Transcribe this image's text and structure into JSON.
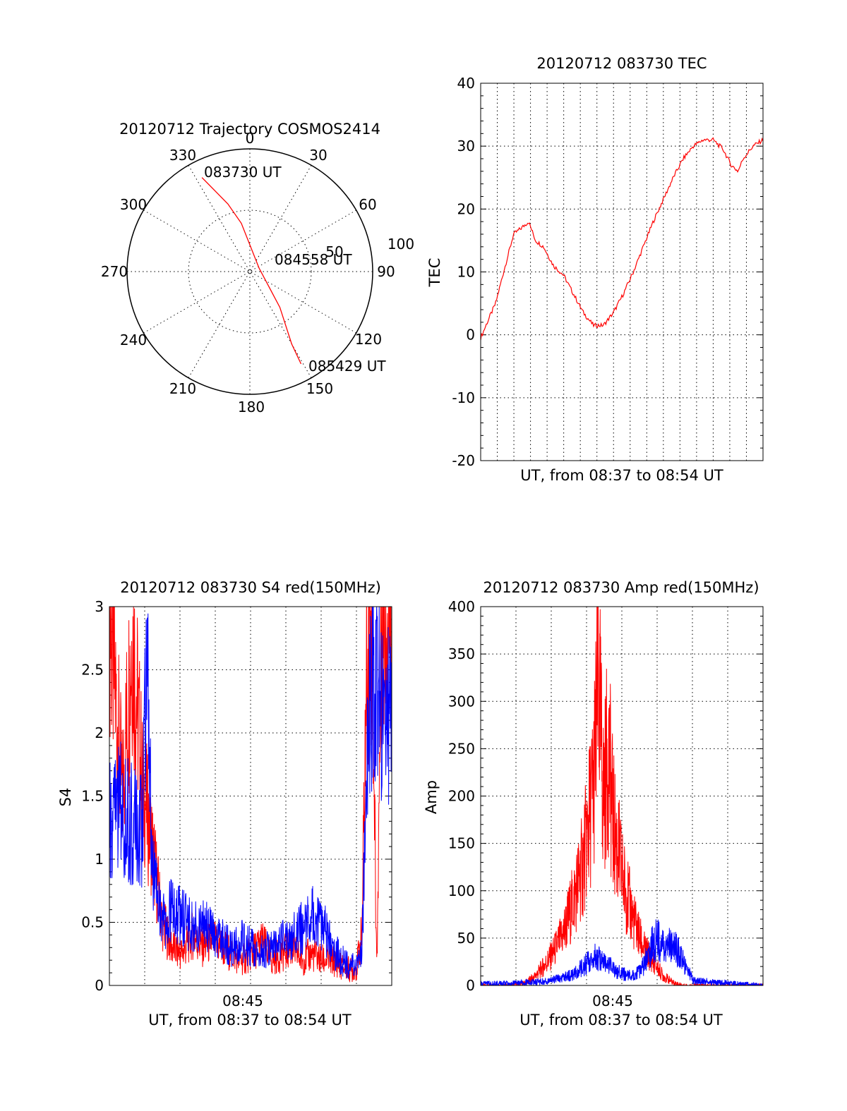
{
  "colors": {
    "red": "#ff0000",
    "blue": "#0000ff",
    "axis": "#000000"
  },
  "chart_data": [
    {
      "type": "polar",
      "title": "20120712 Trajectory COSMOS2414",
      "angle_labels": [
        "0",
        "30",
        "60",
        "90",
        "120",
        "150",
        "180",
        "210",
        "240",
        "270",
        "300",
        "330"
      ],
      "ring_labels": [
        "50",
        "100"
      ],
      "r_max": 100,
      "annotations": [
        "083730 UT",
        "084558 UT",
        "085429 UT"
      ],
      "series": [
        {
          "color": "red",
          "points": [
            [
              333,
              86
            ],
            [
              342,
              58
            ],
            [
              350,
              40
            ],
            [
              70,
              8
            ],
            [
              140,
              38
            ],
            [
              150,
              68
            ],
            [
              151,
              86
            ]
          ]
        }
      ]
    },
    {
      "type": "line",
      "title": "20120712 083730 TEC",
      "xlabel": "UT, from 08:37 to 08:54 UT",
      "ylabel": "TEC",
      "xlim": [
        8.617,
        8.9
      ],
      "ylim": [
        -20,
        40
      ],
      "yticks": [
        "-20",
        "-10",
        "0",
        "10",
        "20",
        "30",
        "40"
      ],
      "grid": true,
      "series": [
        {
          "color": "red",
          "x": [
            8.617,
            8.625,
            8.632,
            8.64,
            8.65,
            8.658,
            8.665,
            8.672,
            8.68,
            8.69,
            8.7,
            8.71,
            8.72,
            8.73,
            8.74,
            8.75,
            8.76,
            8.77,
            8.78,
            8.79,
            8.8,
            8.81,
            8.82,
            8.83,
            8.84,
            8.85,
            8.86,
            8.868,
            8.875,
            8.88,
            8.89,
            8.9
          ],
          "y": [
            -0.5,
            2.5,
            5,
            10,
            16,
            17,
            18,
            15,
            14,
            11,
            9.5,
            6.5,
            3.5,
            1.5,
            1.5,
            3.5,
            6.5,
            10,
            14,
            18,
            21.5,
            25,
            28,
            30,
            31,
            31,
            29.5,
            27,
            26,
            28,
            30,
            31
          ]
        }
      ]
    },
    {
      "type": "line",
      "title": "20120712 083730 S4 red(150MHz)",
      "xlabel": "UT, from 08:37 to 08:54 UT",
      "xtick_label": "08:45",
      "ylabel": "S4",
      "xlim": [
        8.617,
        8.9
      ],
      "ylim": [
        0,
        3
      ],
      "yticks": [
        "0",
        "0.5",
        "1",
        "1.5",
        "2",
        "2.5",
        "3"
      ],
      "grid": true,
      "series": [
        {
          "color": "red",
          "x": [
            8.617,
            8.63,
            8.64,
            8.65,
            8.66,
            8.67,
            8.68,
            8.69,
            8.7,
            8.71,
            8.72,
            8.73,
            8.74,
            8.75,
            8.76,
            8.77,
            8.78,
            8.79,
            8.8,
            8.81,
            8.82,
            8.83,
            8.84,
            8.85,
            8.86,
            8.865,
            8.87,
            8.875,
            8.88,
            8.885,
            8.89,
            8.9
          ],
          "y": [
            3,
            1.5,
            2.8,
            1.6,
            1.1,
            0.5,
            0.3,
            0.25,
            0.4,
            0.3,
            0.35,
            0.3,
            0.25,
            0.2,
            0.25,
            0.35,
            0.2,
            0.25,
            0.3,
            0.2,
            0.25,
            0.2,
            0.2,
            0.15,
            0.12,
            0.15,
            0.4,
            2.5,
            3,
            0.1,
            3,
            3
          ]
        },
        {
          "color": "blue",
          "x": [
            8.617,
            8.63,
            8.64,
            8.65,
            8.655,
            8.66,
            8.67,
            8.68,
            8.69,
            8.7,
            8.71,
            8.72,
            8.73,
            8.74,
            8.75,
            8.76,
            8.77,
            8.78,
            8.79,
            8.8,
            8.81,
            8.82,
            8.83,
            8.84,
            8.85,
            8.86,
            8.865,
            8.87,
            8.875,
            8.88,
            8.89,
            8.9
          ],
          "y": [
            1.3,
            1.4,
            1.25,
            1.2,
            3,
            0.9,
            0.5,
            0.6,
            0.55,
            0.45,
            0.5,
            0.4,
            0.35,
            0.3,
            0.35,
            0.3,
            0.25,
            0.3,
            0.35,
            0.4,
            0.45,
            0.55,
            0.5,
            0.3,
            0.2,
            0.15,
            0.18,
            0.25,
            1.8,
            2.4,
            2.2,
            2
          ]
        }
      ]
    },
    {
      "type": "line",
      "title": "20120712 083730 Amp red(150MHz)",
      "xlabel": "UT, from 08:37 to 08:54 UT",
      "xtick_label": "08:45",
      "ylabel": "Amp",
      "xlim": [
        8.617,
        8.9
      ],
      "ylim": [
        0,
        400
      ],
      "yticks": [
        "0",
        "50",
        "100",
        "150",
        "200",
        "250",
        "300",
        "350",
        "400"
      ],
      "grid": true,
      "series": [
        {
          "color": "red",
          "x": [
            8.617,
            8.64,
            8.66,
            8.67,
            8.68,
            8.69,
            8.7,
            8.71,
            8.72,
            8.725,
            8.73,
            8.735,
            8.74,
            8.745,
            8.75,
            8.76,
            8.77,
            8.78,
            8.79,
            8.8,
            8.81,
            8.82,
            8.83,
            8.9
          ],
          "y": [
            0,
            0,
            2,
            8,
            20,
            35,
            55,
            90,
            130,
            170,
            210,
            320,
            200,
            250,
            170,
            110,
            70,
            40,
            25,
            10,
            3,
            0,
            0,
            0
          ]
        },
        {
          "color": "blue",
          "x": [
            8.617,
            8.64,
            8.66,
            8.68,
            8.7,
            8.71,
            8.72,
            8.73,
            8.74,
            8.75,
            8.76,
            8.77,
            8.78,
            8.79,
            8.795,
            8.8,
            8.81,
            8.82,
            8.83,
            8.9
          ],
          "y": [
            2,
            2,
            3,
            4,
            8,
            12,
            20,
            30,
            25,
            18,
            12,
            10,
            20,
            45,
            50,
            40,
            45,
            25,
            5,
            0
          ]
        }
      ]
    }
  ]
}
